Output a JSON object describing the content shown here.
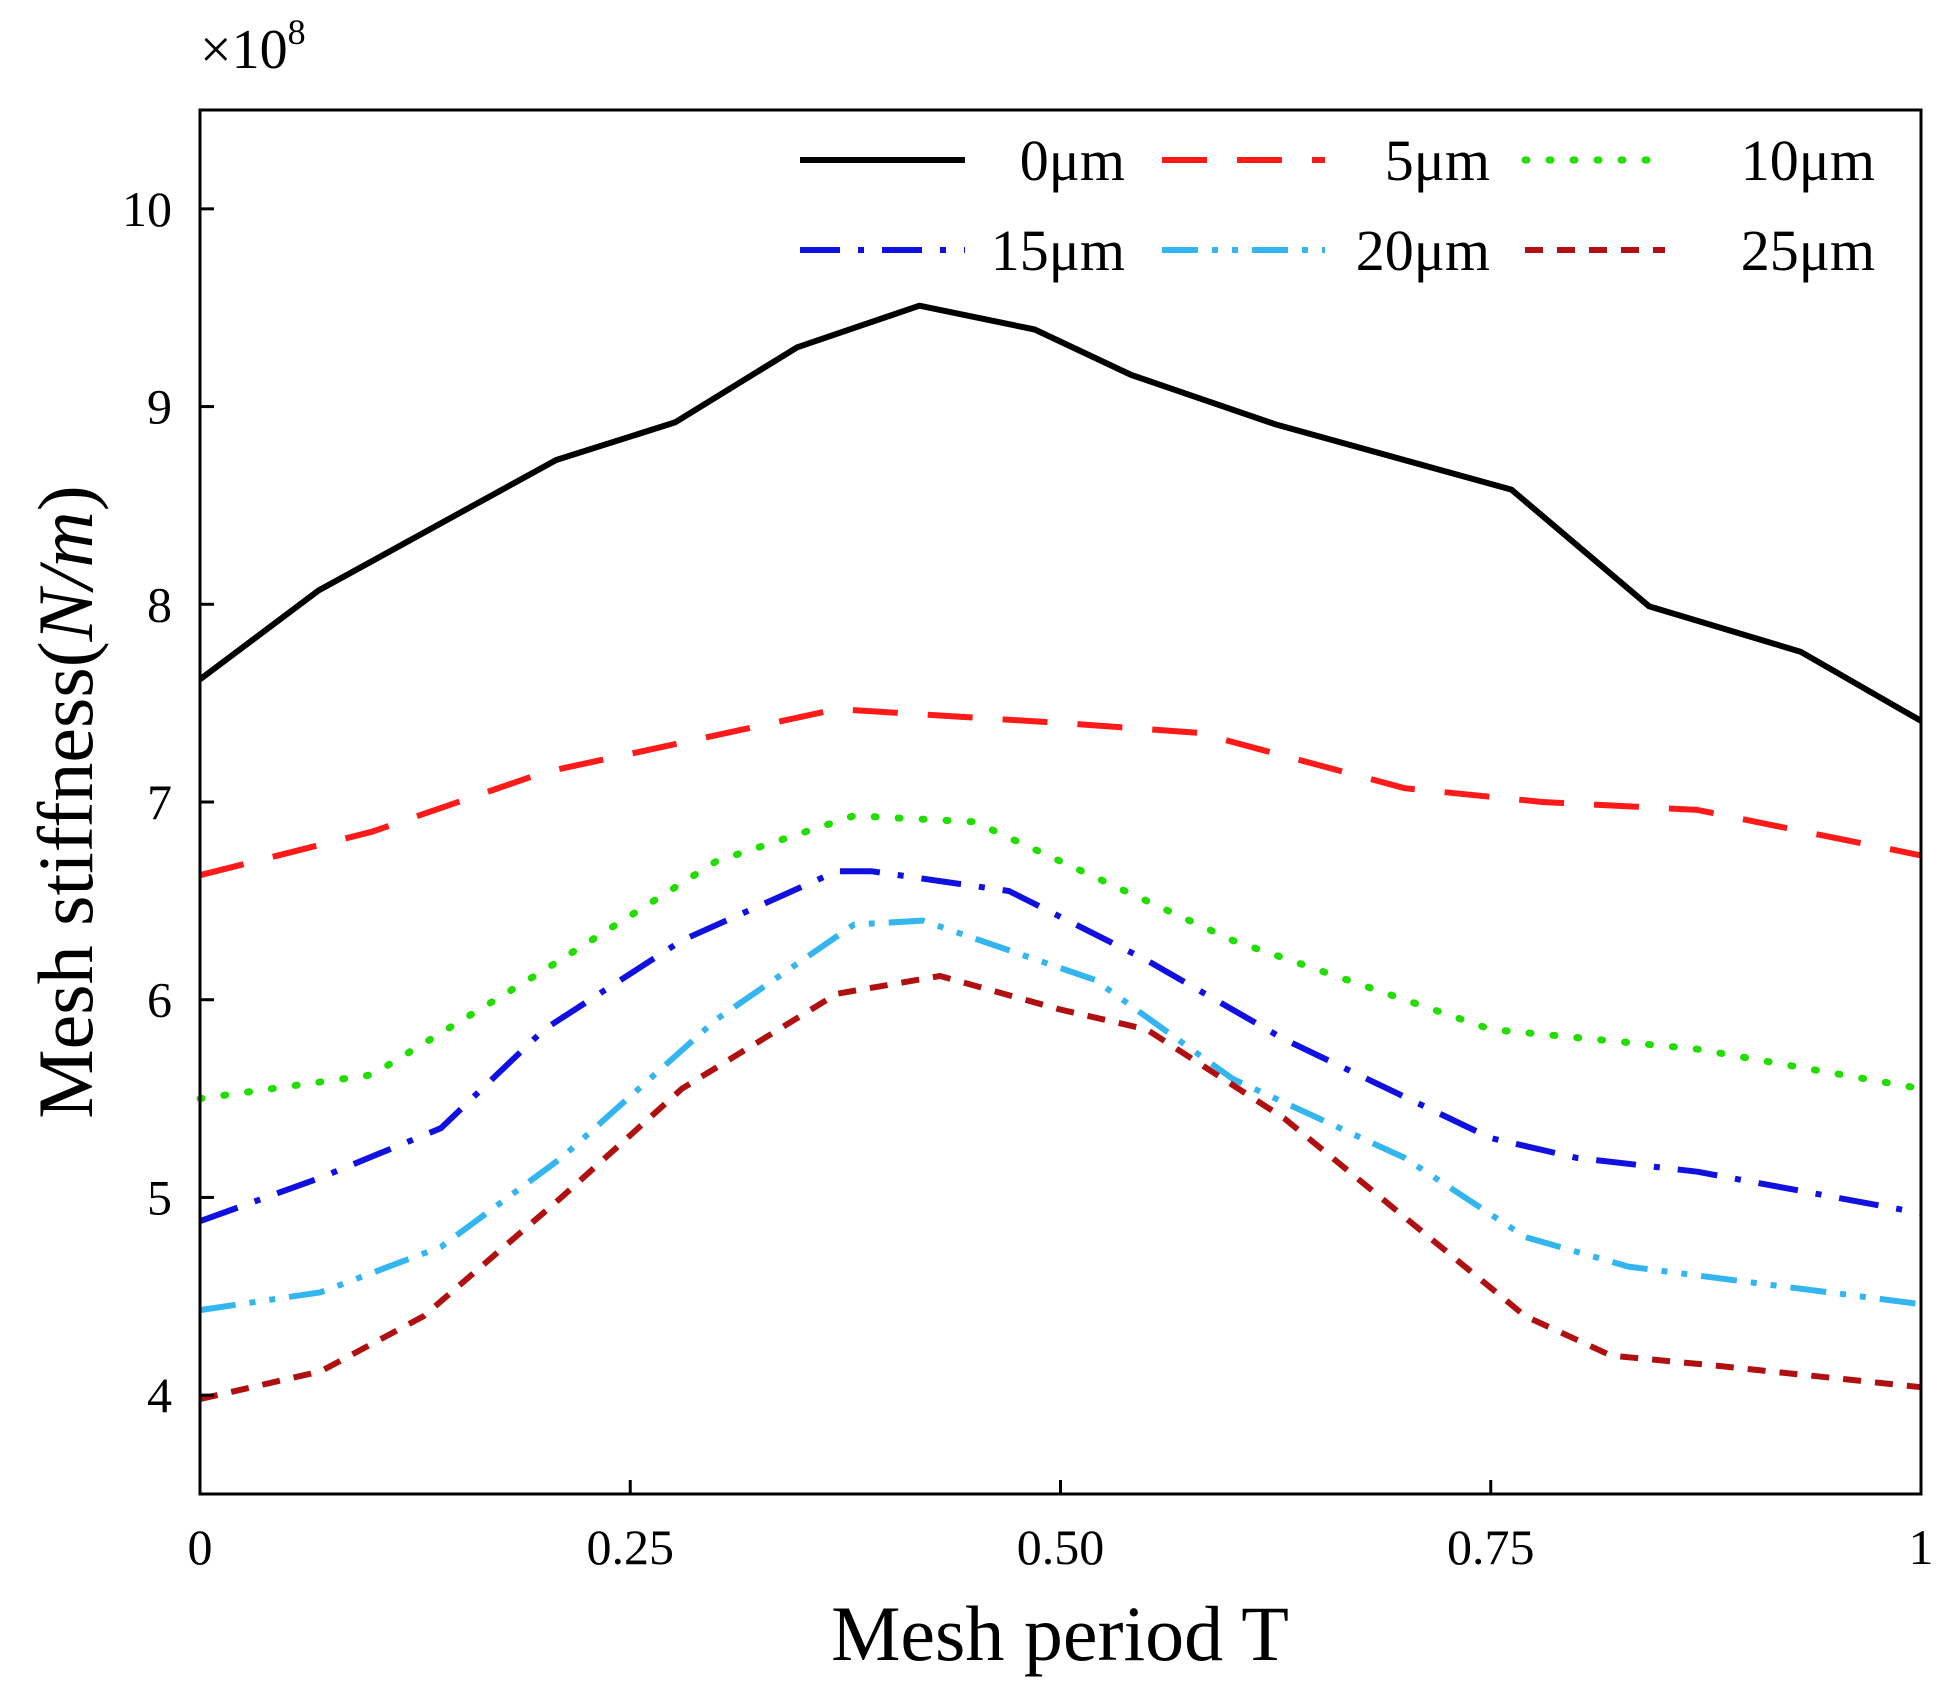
{
  "chart_data": {
    "type": "line",
    "title": "",
    "xlabel": "Mesh period T",
    "ylabel_prefix": "Mesh stiffness(",
    "ylabel_unit": "N/m",
    "ylabel_suffix": ")",
    "y_multiplier": "×10",
    "y_multiplier_exp": "8",
    "xlim": [
      0,
      1
    ],
    "ylim": [
      3.5,
      10.5
    ],
    "xticks": [
      0,
      0.25,
      0.5,
      0.75,
      1
    ],
    "xtick_labels": [
      "0",
      "0.25",
      "0.50",
      "0.75",
      "1"
    ],
    "yticks": [
      4,
      5,
      6,
      7,
      8,
      9,
      10
    ],
    "ytick_labels": [
      "4",
      "5",
      "6",
      "7",
      "8",
      "9",
      "10"
    ],
    "grid": false,
    "legend_position": "top-right",
    "series": [
      {
        "name": "0μm",
        "color": "#000000",
        "style": "solid",
        "x": [
          0,
          0.069,
          0.207,
          0.276,
          0.347,
          0.418,
          0.485,
          0.541,
          0.625,
          0.762,
          0.842,
          0.93,
          1
        ],
        "y": [
          7.62,
          8.07,
          8.73,
          8.92,
          9.3,
          9.51,
          9.39,
          9.16,
          8.91,
          8.58,
          7.99,
          7.76,
          7.41
        ]
      },
      {
        "name": "5μm",
        "color": "#ff1a1a",
        "style": "dash",
        "x": [
          0,
          0.1,
          0.2,
          0.28,
          0.37,
          0.5,
          0.58,
          0.7,
          0.78,
          0.87,
          1
        ],
        "y": [
          6.63,
          6.85,
          7.15,
          7.3,
          7.47,
          7.4,
          7.35,
          7.07,
          7.0,
          6.96,
          6.73
        ]
      },
      {
        "name": "10μm",
        "color": "#22dd00",
        "style": "dot",
        "x": [
          0,
          0.1,
          0.2,
          0.3,
          0.38,
          0.45,
          0.5,
          0.6,
          0.75,
          0.87,
          1
        ],
        "y": [
          5.5,
          5.62,
          6.15,
          6.7,
          6.93,
          6.9,
          6.7,
          6.3,
          5.85,
          5.75,
          5.55
        ]
      },
      {
        "name": "15μm",
        "color": "#1010e0",
        "style": "dashdot",
        "x": [
          0,
          0.07,
          0.14,
          0.2,
          0.28,
          0.37,
          0.39,
          0.47,
          0.55,
          0.63,
          0.75,
          0.8,
          0.87,
          1
        ],
        "y": [
          4.88,
          5.1,
          5.35,
          5.85,
          6.3,
          6.65,
          6.65,
          6.55,
          6.2,
          5.8,
          5.3,
          5.2,
          5.13,
          4.92
        ]
      },
      {
        "name": "20μm",
        "color": "#33b5f0",
        "style": "dashdotdot",
        "x": [
          0,
          0.07,
          0.14,
          0.21,
          0.3,
          0.38,
          0.42,
          0.52,
          0.6,
          0.7,
          0.77,
          0.83,
          1
        ],
        "y": [
          4.43,
          4.52,
          4.75,
          5.2,
          5.9,
          6.38,
          6.4,
          6.1,
          5.6,
          5.2,
          4.8,
          4.65,
          4.46
        ]
      },
      {
        "name": "25μm",
        "color": "#b01010",
        "style": "shortdash",
        "x": [
          0,
          0.07,
          0.13,
          0.21,
          0.28,
          0.37,
          0.43,
          0.5,
          0.55,
          0.63,
          0.7,
          0.77,
          0.82,
          0.88,
          1
        ],
        "y": [
          3.98,
          4.12,
          4.4,
          5.0,
          5.55,
          6.03,
          6.12,
          5.95,
          5.85,
          5.4,
          4.9,
          4.4,
          4.2,
          4.15,
          4.04
        ]
      }
    ]
  }
}
